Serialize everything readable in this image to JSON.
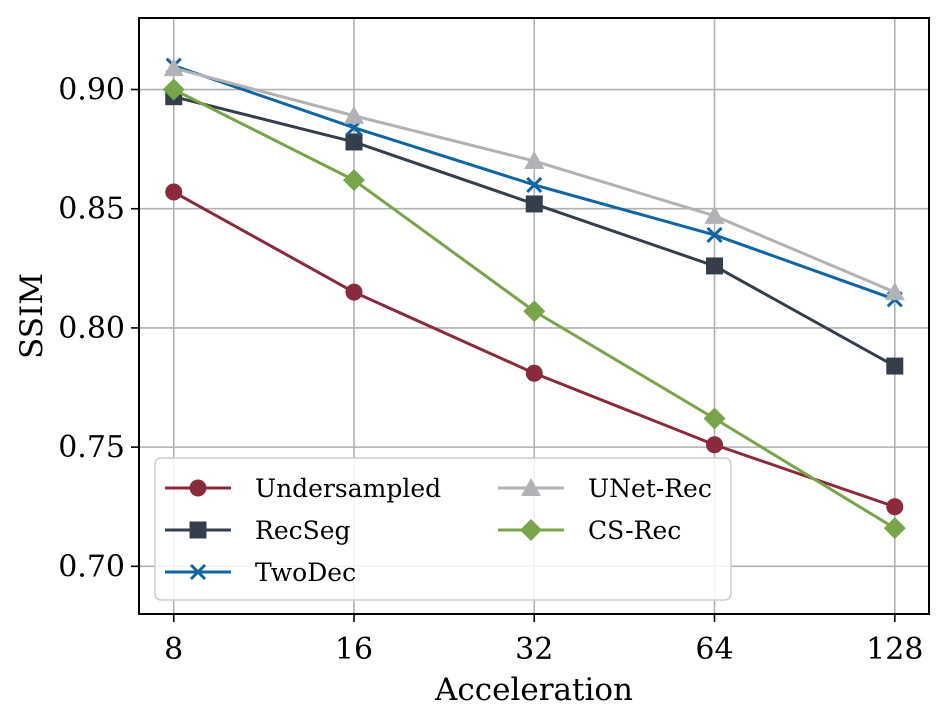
{
  "chart_data": {
    "type": "line",
    "title": "",
    "xlabel": "Acceleration",
    "ylabel": "SSIM",
    "x_scale": "log2",
    "categories": [
      "8",
      "16",
      "32",
      "64",
      "128"
    ],
    "x": [
      8,
      16,
      32,
      64,
      128
    ],
    "xlim": [
      7.0,
      146.0
    ],
    "ylim": [
      0.68,
      0.93
    ],
    "yticks": [
      0.7,
      0.75,
      0.8,
      0.85,
      0.9
    ],
    "ytick_labels": [
      "0.70",
      "0.75",
      "0.80",
      "0.85",
      "0.90"
    ],
    "grid": true,
    "legend_position": "lower-left",
    "legend_columns": 2,
    "series": [
      {
        "name": "Undersampled",
        "values": [
          0.857,
          0.815,
          0.781,
          0.751,
          0.725
        ],
        "color": "#8b2a3a",
        "marker": "circle"
      },
      {
        "name": "RecSeg",
        "values": [
          0.897,
          0.878,
          0.852,
          0.826,
          0.784
        ],
        "color": "#343f4b",
        "marker": "square"
      },
      {
        "name": "TwoDec",
        "values": [
          0.91,
          0.884,
          0.86,
          0.839,
          0.812
        ],
        "color": "#0f66a3",
        "marker": "x"
      },
      {
        "name": "UNet-Rec",
        "values": [
          0.909,
          0.889,
          0.87,
          0.847,
          0.815
        ],
        "color": "#b1b1b6",
        "marker": "triangle"
      },
      {
        "name": "CS-Rec",
        "values": [
          0.9,
          0.862,
          0.807,
          0.762,
          0.716
        ],
        "color": "#78a54a",
        "marker": "diamond"
      }
    ]
  }
}
